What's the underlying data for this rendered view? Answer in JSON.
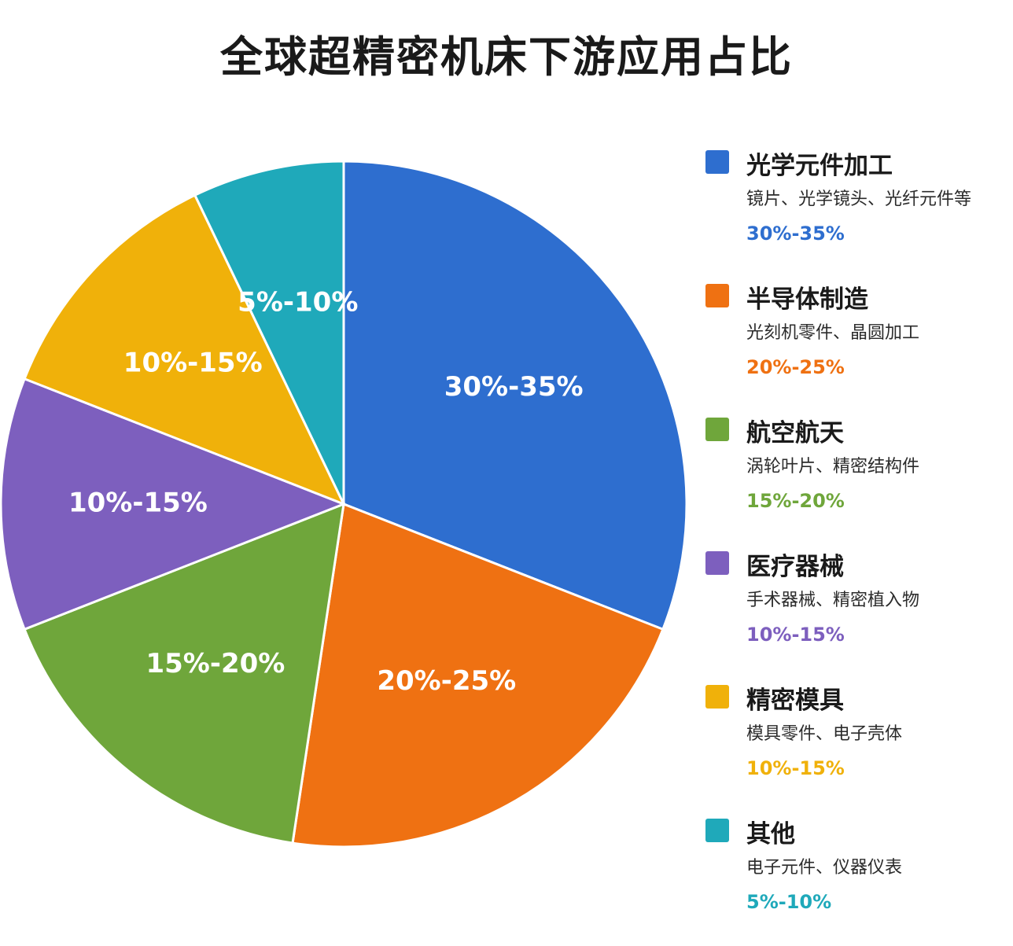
{
  "title": "全球超精密机床下游应用占比",
  "chart_data": {
    "type": "pie",
    "title": "全球超精密机床下游应用占比",
    "slices": [
      {
        "name": "光学元件加工",
        "desc": "镜片、光学镜头、光纤元件等",
        "label": "30%-35%",
        "value": 32.5,
        "color": "#2e6ecf"
      },
      {
        "name": "半导体制造",
        "desc": "光刻机零件、晶圆加工",
        "label": "20%-25%",
        "value": 22.5,
        "color": "#ef7112"
      },
      {
        "name": "航空航天",
        "desc": "涡轮叶片、精密结构件",
        "label": "15%-20%",
        "value": 17.5,
        "color": "#6fa63b"
      },
      {
        "name": "医疗器械",
        "desc": "手术器械、精密植入物",
        "label": "10%-15%",
        "value": 12.5,
        "color": "#7d5fbe"
      },
      {
        "name": "精密模具",
        "desc": "模具零件、电子壳体",
        "label": "10%-15%",
        "value": 12.5,
        "color": "#f0b10a"
      },
      {
        "name": "其他",
        "desc": "电子元件、仪器仪表",
        "label": "5%-10%",
        "value": 7.5,
        "color": "#1fa9ba"
      }
    ],
    "legend_position": "right"
  }
}
